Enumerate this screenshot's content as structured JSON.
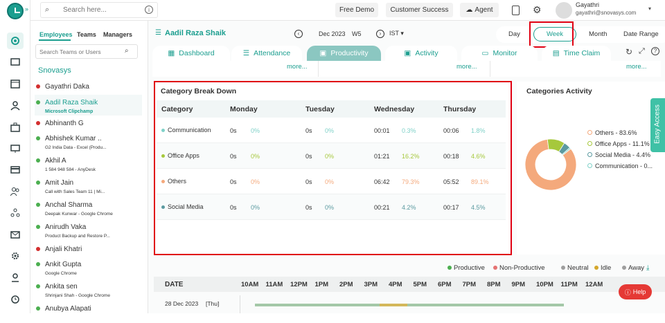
{
  "search": {
    "placeholder": "Search here..."
  },
  "topbar": {
    "free_demo": "Free Demo",
    "customer_success": "Customer Success",
    "agent": "Agent",
    "user_name": "Gayathri",
    "user_email": "gayathri@snovasys.com"
  },
  "left_panel": {
    "tabs": [
      "Employees",
      "Teams",
      "Managers"
    ],
    "search_placeholder": "Search Teams or Users",
    "org": "Snovasys",
    "employees": [
      {
        "name": "Gayathri Daka",
        "sub": "",
        "status": "#d32f2f"
      },
      {
        "name": "Aadil Raza Shaik",
        "sub": "Microsoft Clipchamp",
        "status": "#4caf50",
        "selected": true
      },
      {
        "name": "Abhinanth G",
        "sub": "",
        "status": "#d32f2f"
      },
      {
        "name": "Abhishek Kumar ..",
        "sub": "G2 India Data - Excel (Produ...",
        "status": "#4caf50"
      },
      {
        "name": "Akhil A",
        "sub": "1 584 948 584 - AnyDesk",
        "status": "#4caf50"
      },
      {
        "name": "Amit Jain",
        "sub": "Call with Sales Team 11 | Mi...",
        "status": "#4caf50"
      },
      {
        "name": "Anchal Sharma",
        "sub": "Deepak Kunwar - Google Chrome",
        "status": "#4caf50"
      },
      {
        "name": "Anirudh Vaka",
        "sub": "Product Backup and Restore P...",
        "status": "#4caf50"
      },
      {
        "name": "Anjali Khatri",
        "sub": "",
        "status": "#d32f2f"
      },
      {
        "name": "Ankit Gupta",
        "sub": "Google Chrome",
        "status": "#4caf50"
      },
      {
        "name": "Ankita sen",
        "sub": "Shrinjani Shah - Google Chrome",
        "status": "#4caf50"
      },
      {
        "name": "Anubya Alapati",
        "sub": "",
        "status": "#4caf50"
      }
    ]
  },
  "header": {
    "employee_name": "Aadil Raza Shaik",
    "period": "Dec 2023",
    "week": "W5",
    "timezone": "IST"
  },
  "view_modes": [
    "Day",
    "Week",
    "Month",
    "Date Range"
  ],
  "nav_tabs": [
    "Dashboard",
    "Attendance",
    "Productivity",
    "Activity",
    "Monitor",
    "Time Claim"
  ],
  "more_links": [
    "more...",
    "more...",
    "more..."
  ],
  "breakdown": {
    "title": "Category Break Down",
    "columns": [
      "Category",
      "Monday",
      "Tuesday",
      "Wednesday",
      "Thursday"
    ],
    "rows": [
      {
        "category": "Communication",
        "color": "#7fd1c8",
        "mon": [
          "0s",
          "0%"
        ],
        "tue": [
          "0s",
          "0%"
        ],
        "wed": [
          "00:01",
          "0.3%"
        ],
        "thu": [
          "00:06",
          "1.8%"
        ]
      },
      {
        "category": "Office Apps",
        "color": "#a6c83c",
        "mon": [
          "0s",
          "0%"
        ],
        "tue": [
          "0s",
          "0%"
        ],
        "wed": [
          "01:21",
          "16.2%"
        ],
        "thu": [
          "00:18",
          "4.6%"
        ]
      },
      {
        "category": "Others",
        "color": "#f4a97c",
        "mon": [
          "0s",
          "0%"
        ],
        "tue": [
          "0s",
          "0%"
        ],
        "wed": [
          "06:42",
          "79.3%"
        ],
        "thu": [
          "05:52",
          "89.1%"
        ]
      },
      {
        "category": "Social Media",
        "color": "#5b9aa0",
        "mon": [
          "0s",
          "0%"
        ],
        "tue": [
          "0s",
          "0%"
        ],
        "wed": [
          "00:21",
          "4.2%"
        ],
        "thu": [
          "00:17",
          "4.5%"
        ]
      }
    ]
  },
  "activity": {
    "title": "Categories Activity",
    "items": [
      {
        "label": "Others - 83.6%",
        "color": "#f4a97c",
        "value": 83.6
      },
      {
        "label": "Office Apps - 11.1%",
        "color": "#a6c83c",
        "value": 11.1
      },
      {
        "label": "Social Media - 4.4%",
        "color": "#5b9aa0",
        "value": 4.4
      },
      {
        "label": "Communication - 0...",
        "color": "#7fd1c8",
        "value": 0.9
      }
    ]
  },
  "status_legend": [
    {
      "label": "Productive",
      "color": "#4caf50"
    },
    {
      "label": "Non-Productive",
      "color": "#e57373"
    },
    {
      "label": "Neutral",
      "color": "#9e9e9e"
    },
    {
      "label": "Idle",
      "color": "#d4a72c"
    },
    {
      "label": "Away",
      "color": "#9e9e9e"
    }
  ],
  "timeline": {
    "date_header": "DATE",
    "hours": [
      "10AM",
      "11AM",
      "12PM",
      "1PM",
      "2PM",
      "3PM",
      "4PM",
      "5PM",
      "6PM",
      "7PM",
      "8PM",
      "9PM",
      "10PM",
      "11PM",
      "12AM"
    ],
    "row_date": "28 Dec 2023",
    "row_day": "[Thu]"
  },
  "easy_access": "Easy Access",
  "help": "Help"
}
